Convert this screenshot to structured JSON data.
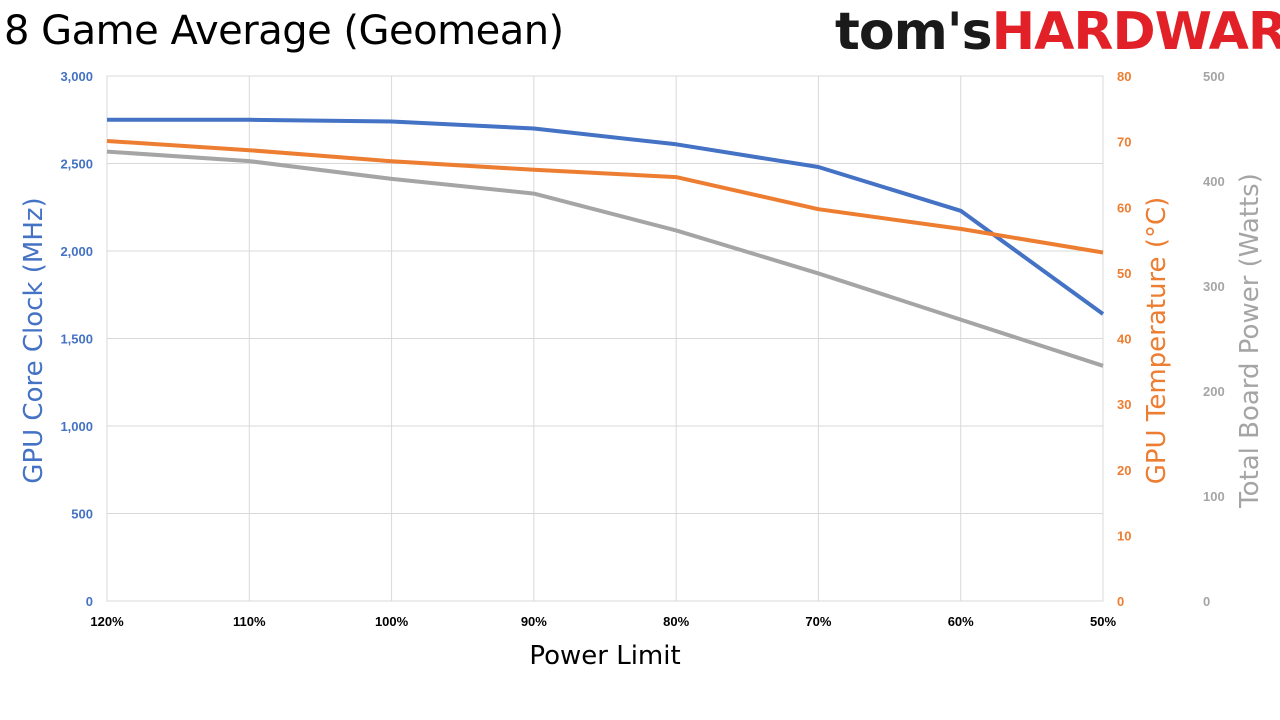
{
  "title": "8 Game Average (Geomean)",
  "logo": {
    "part1": "tom's",
    "part2": "HARDWARE"
  },
  "chart_data": {
    "type": "line",
    "title": "8 Game Average (Geomean)",
    "xlabel": "Power Limit",
    "categories": [
      "120%",
      "110%",
      "100%",
      "90%",
      "80%",
      "70%",
      "60%",
      "50%"
    ],
    "axes": {
      "left": {
        "label": "GPU Core Clock (MHz)",
        "min": 0,
        "max": 3000,
        "ticks": [
          0,
          500,
          1000,
          1500,
          2000,
          2500,
          3000
        ],
        "tick_labels": [
          "0",
          "500",
          "1,000",
          "1,500",
          "2,000",
          "2,500",
          "3,000"
        ],
        "color": "#4472c4"
      },
      "right1": {
        "label": "GPU Temperature (°C)",
        "min": 0,
        "max": 80,
        "ticks": [
          0,
          10,
          20,
          30,
          40,
          50,
          60,
          70,
          80
        ],
        "tick_labels": [
          "0",
          "10",
          "20",
          "30",
          "40",
          "50",
          "60",
          "70",
          "80"
        ],
        "color": "#ed7d31"
      },
      "right2": {
        "label": "Total Board Power (Watts)",
        "min": 0,
        "max": 500,
        "ticks": [
          0,
          100,
          200,
          300,
          400,
          500
        ],
        "tick_labels": [
          "0",
          "100",
          "200",
          "300",
          "400",
          "500"
        ],
        "color": "#a5a5a5"
      }
    },
    "series": [
      {
        "axis": "left",
        "color": "#4472c4",
        "values": [
          2750,
          2750,
          2740,
          2700,
          2610,
          2480,
          2230,
          1640
        ]
      },
      {
        "axis": "right1",
        "color": "#ed7d31",
        "values": [
          70.1,
          68.7,
          67.0,
          65.7,
          64.6,
          59.7,
          56.7,
          53.1
        ]
      },
      {
        "axis": "right2",
        "color": "#a5a5a5",
        "values": [
          428,
          419,
          402,
          388,
          353,
          312,
          268,
          224
        ]
      }
    ],
    "grid": true,
    "legend": "none"
  }
}
